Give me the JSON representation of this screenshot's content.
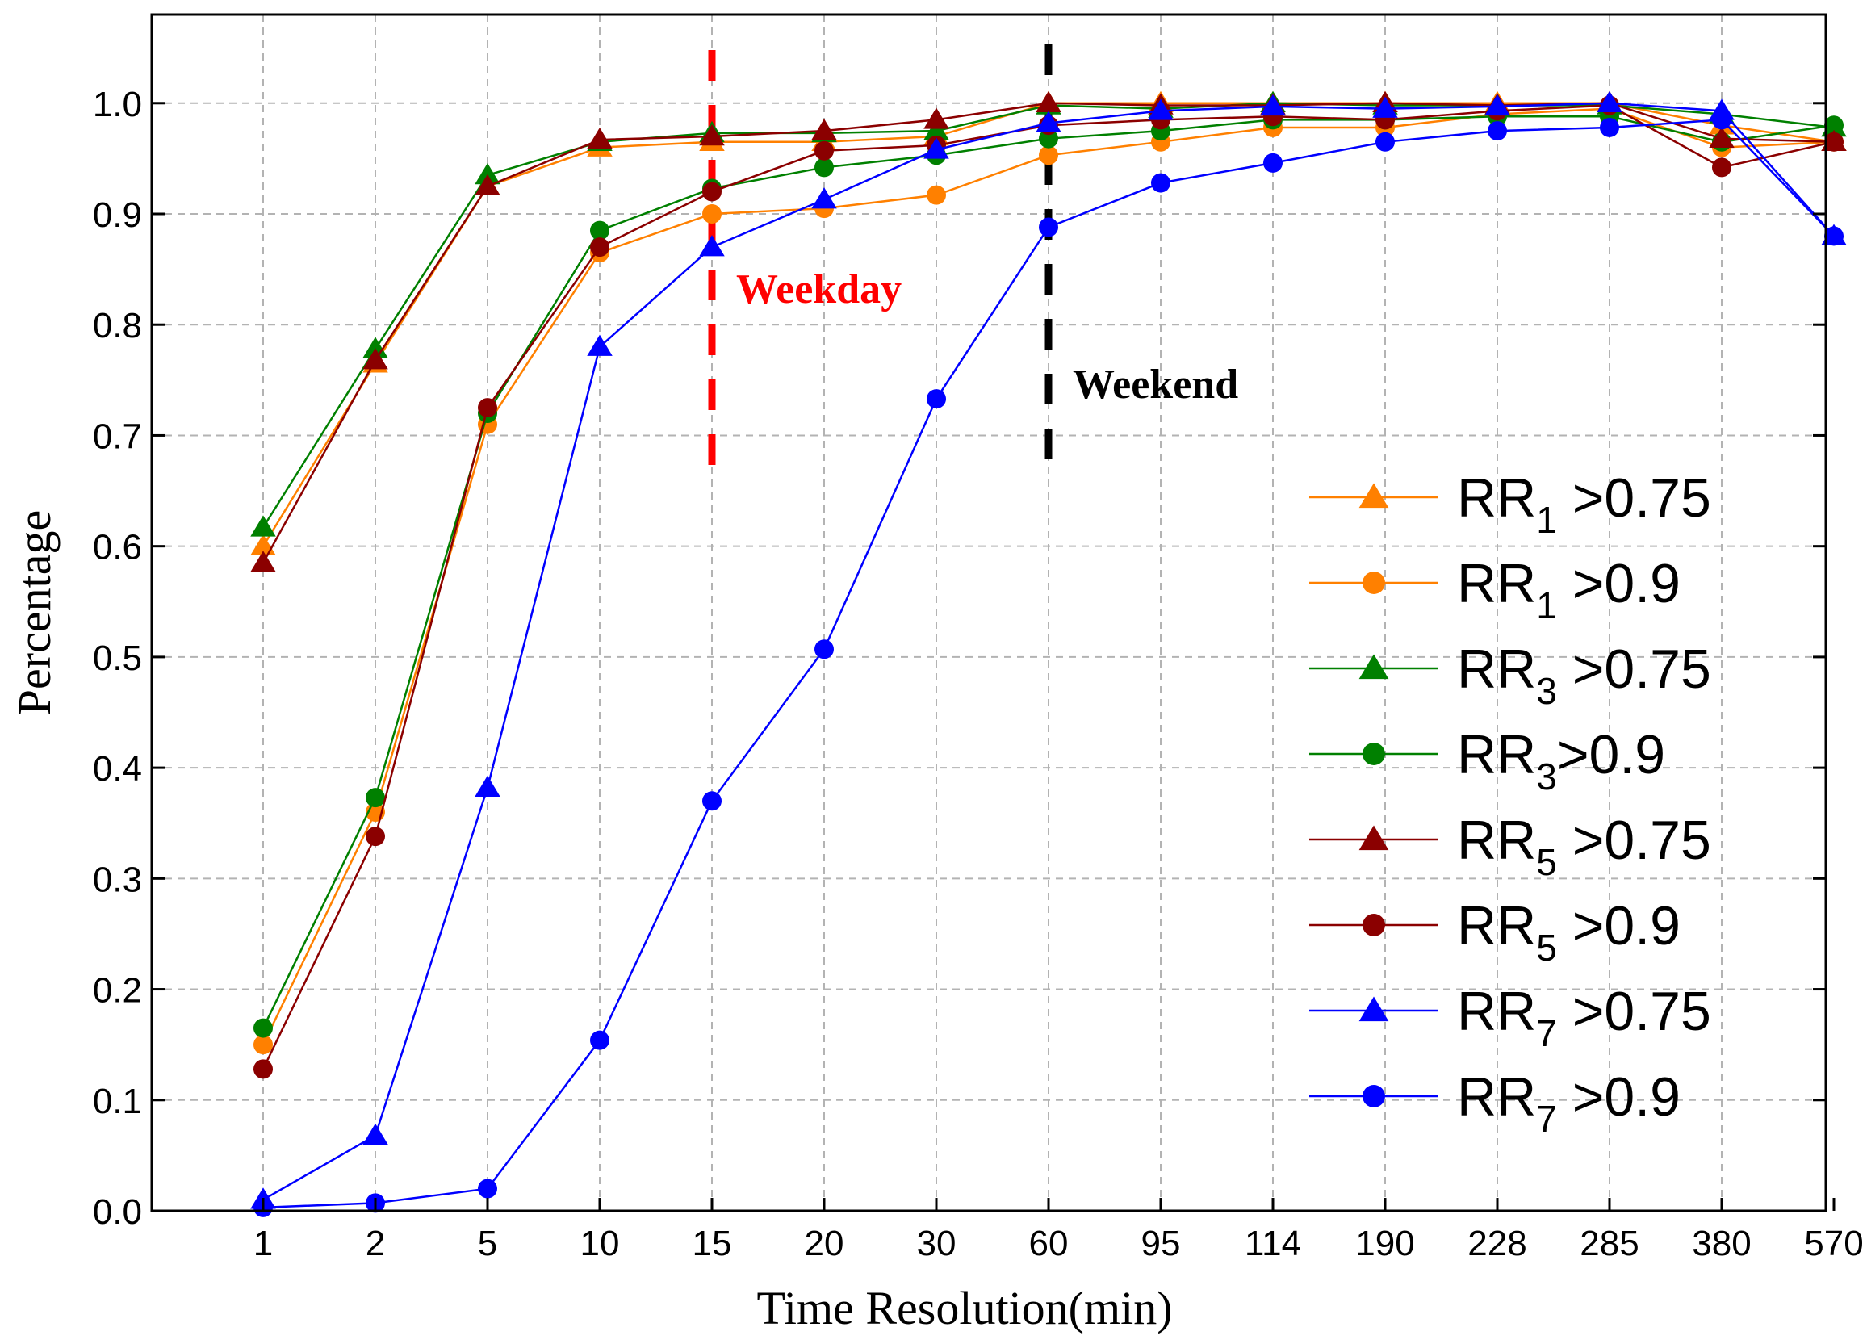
{
  "chart_data": {
    "type": "line",
    "xlabel": "Time Resolution(min)",
    "ylabel": "Percentage",
    "categories": [
      "1",
      "2",
      "5",
      "10",
      "15",
      "20",
      "30",
      "60",
      "95",
      "114",
      "190",
      "228",
      "285",
      "380",
      "570"
    ],
    "yticks": [
      "0.0",
      "0.1",
      "0.2",
      "0.3",
      "0.4",
      "0.5",
      "0.6",
      "0.7",
      "0.8",
      "0.9",
      "1.0"
    ],
    "ylim": [
      0,
      1.08
    ],
    "grid": true,
    "legend_position": "right",
    "series": [
      {
        "name": "RR",
        "sub": "1",
        "suffix": " >0.75",
        "color": "#FF8000",
        "marker": "triangle",
        "values": [
          0.6,
          0.765,
          0.925,
          0.96,
          0.965,
          0.965,
          0.97,
          1.0,
          1.0,
          1.0,
          1.0,
          1.0,
          1.0,
          0.98,
          0.965
        ]
      },
      {
        "name": "RR",
        "sub": "1",
        "suffix": " >0.9",
        "color": "#FF8000",
        "marker": "circle",
        "values": [
          0.15,
          0.36,
          0.71,
          0.865,
          0.9,
          0.905,
          0.917,
          0.953,
          0.965,
          0.978,
          0.978,
          0.99,
          0.995,
          0.96,
          0.965
        ]
      },
      {
        "name": "RR",
        "sub": "3",
        "suffix": " >0.75",
        "color": "#008000",
        "marker": "triangle",
        "values": [
          0.617,
          0.778,
          0.935,
          0.965,
          0.973,
          0.973,
          0.975,
          0.998,
          0.995,
          1.0,
          0.998,
          0.998,
          0.998,
          0.99,
          0.978
        ]
      },
      {
        "name": "RR",
        "sub": "3",
        "suffix": ">0.9",
        "color": "#008000",
        "marker": "circle",
        "values": [
          0.165,
          0.373,
          0.72,
          0.885,
          0.923,
          0.942,
          0.953,
          0.968,
          0.975,
          0.985,
          0.985,
          0.988,
          0.988,
          0.965,
          0.98
        ]
      },
      {
        "name": "RR",
        "sub": "5",
        "suffix": " >0.75",
        "color": "#8B0000",
        "marker": "triangle",
        "values": [
          0.585,
          0.768,
          0.925,
          0.967,
          0.97,
          0.975,
          0.985,
          1.0,
          0.998,
          0.998,
          1.0,
          0.998,
          1.0,
          0.968,
          0.965
        ]
      },
      {
        "name": "RR",
        "sub": "5",
        "suffix": " >0.9",
        "color": "#8B0000",
        "marker": "circle",
        "values": [
          0.128,
          0.338,
          0.725,
          0.87,
          0.92,
          0.957,
          0.962,
          0.98,
          0.985,
          0.988,
          0.985,
          0.993,
          0.998,
          0.942,
          0.965
        ]
      },
      {
        "name": "RR",
        "sub": "7",
        "suffix": " >0.75",
        "color": "#0000FF",
        "marker": "triangle",
        "values": [
          0.01,
          0.068,
          0.382,
          0.78,
          0.87,
          0.913,
          0.958,
          0.982,
          0.993,
          0.997,
          0.995,
          0.997,
          1.0,
          0.993,
          0.88
        ]
      },
      {
        "name": "RR",
        "sub": "7",
        "suffix": " >0.9",
        "color": "#0000FF",
        "marker": "circle",
        "values": [
          0.003,
          0.007,
          0.02,
          0.154,
          0.37,
          0.507,
          0.733,
          0.888,
          0.928,
          0.946,
          0.965,
          0.975,
          0.978,
          0.985,
          0.88
        ]
      }
    ],
    "annotations": [
      {
        "text": "Weekday",
        "category": "15",
        "color": "#FF0000"
      },
      {
        "text": "Weekend",
        "category": "60",
        "color": "#000000"
      }
    ]
  }
}
